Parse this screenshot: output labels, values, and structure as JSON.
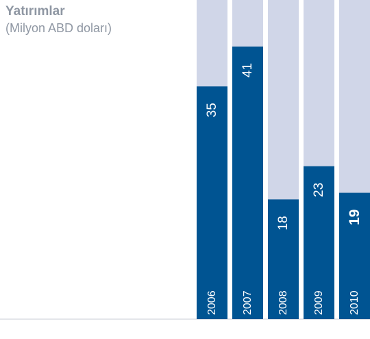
{
  "title": "Yatırımlar",
  "subtitle": "(Milyon ABD doları)",
  "chart_data": {
    "type": "bar",
    "orientation": "vertical",
    "title": "Yatırımlar",
    "subtitle": "(Milyon ABD doları)",
    "categories": [
      "2006",
      "2007",
      "2008",
      "2009",
      "2010"
    ],
    "values": [
      35,
      41,
      18,
      23,
      19
    ],
    "highlight_category": "2010",
    "ylim": [
      0,
      48
    ],
    "grid": false,
    "legend": "none",
    "label_orientation": "rotated-vertical",
    "colors": {
      "bar": "#005492",
      "track": "#d0d6e8",
      "baseline": "#c9cdd6",
      "text": "#8f97a3",
      "label": "#ffffff"
    }
  }
}
